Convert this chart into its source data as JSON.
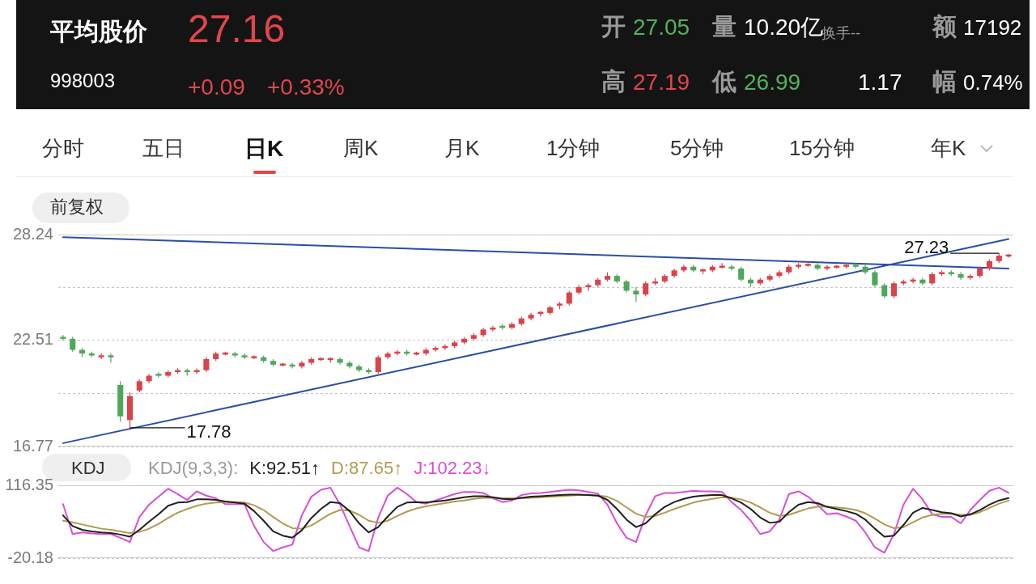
{
  "chart_data": [
    {
      "type": "other",
      "title": "平均股价",
      "annotations": [
        "27.16",
        "998003",
        "+0.09",
        "+0.33%",
        "开",
        "27.05",
        "量",
        "10.20亿",
        "换手--",
        "额",
        "17192",
        "高",
        "27.19",
        "低",
        "26.99",
        "1.17",
        "幅",
        "0.74%",
        "分时",
        "五日",
        "日K",
        "周K",
        "月K",
        "1分钟",
        "5分钟",
        "15分钟",
        "年K",
        "前复权"
      ]
    },
    {
      "type": "candlestick",
      "categories": [
        null,
        null,
        null,
        null,
        null,
        null,
        null,
        null,
        null,
        null,
        null,
        null,
        null,
        null,
        null,
        null,
        null,
        null,
        null,
        null,
        null,
        null,
        null,
        null,
        null,
        null,
        null,
        null,
        null,
        null,
        null,
        null,
        null,
        null,
        null,
        null,
        null,
        null,
        null,
        null,
        null,
        null,
        null,
        null,
        null,
        null,
        null,
        null,
        null,
        null,
        null,
        null,
        null,
        null,
        null,
        null,
        null,
        null,
        null,
        null,
        null,
        null,
        null,
        null,
        null,
        null,
        null,
        null,
        null,
        null,
        null,
        null,
        null,
        null,
        null,
        null,
        null,
        null,
        null,
        null,
        null,
        null,
        null,
        null,
        null,
        null,
        null,
        null,
        null,
        null,
        null,
        null,
        null,
        null,
        null,
        null,
        null,
        null,
        null,
        null
      ],
      "ohlc": [
        [
          22.7,
          22.8,
          22.5,
          22.6
        ],
        [
          22.6,
          22.7,
          21.9,
          22.0
        ],
        [
          22.0,
          22.1,
          21.6,
          21.8
        ],
        [
          21.8,
          21.9,
          21.6,
          21.7
        ],
        [
          21.6,
          21.8,
          21.5,
          21.7
        ],
        [
          21.7,
          21.8,
          21.3,
          21.6
        ],
        [
          20.1,
          20.3,
          18.1,
          18.4
        ],
        [
          18.2,
          19.7,
          17.78,
          19.5
        ],
        [
          19.8,
          20.4,
          19.7,
          20.3
        ],
        [
          20.3,
          20.7,
          20.2,
          20.6
        ],
        [
          20.7,
          20.8,
          20.5,
          20.6
        ],
        [
          20.6,
          20.9,
          20.5,
          20.8
        ],
        [
          20.8,
          21.0,
          20.7,
          20.9
        ],
        [
          20.9,
          21.0,
          20.6,
          20.8
        ],
        [
          20.8,
          21.0,
          20.7,
          20.9
        ],
        [
          20.9,
          21.6,
          20.8,
          21.5
        ],
        [
          21.5,
          21.9,
          21.4,
          21.8
        ],
        [
          21.8,
          21.9,
          21.7,
          21.8
        ],
        [
          21.8,
          21.9,
          21.6,
          21.7
        ],
        [
          21.7,
          21.8,
          21.5,
          21.6
        ],
        [
          21.6,
          21.7,
          21.5,
          21.6
        ],
        [
          21.6,
          21.7,
          21.3,
          21.4
        ],
        [
          21.4,
          21.5,
          21.1,
          21.2
        ],
        [
          21.2,
          21.3,
          21.1,
          21.2
        ],
        [
          21.2,
          21.3,
          21.0,
          21.1
        ],
        [
          21.1,
          21.4,
          21.0,
          21.3
        ],
        [
          21.3,
          21.6,
          21.2,
          21.5
        ],
        [
          21.5,
          21.6,
          21.4,
          21.5
        ],
        [
          21.5,
          21.6,
          21.3,
          21.5
        ],
        [
          21.5,
          21.6,
          21.2,
          21.3
        ],
        [
          21.3,
          21.4,
          21.0,
          21.1
        ],
        [
          21.1,
          21.2,
          20.8,
          20.9
        ],
        [
          20.9,
          21.0,
          20.7,
          20.8
        ],
        [
          20.8,
          21.7,
          20.7,
          21.6
        ],
        [
          21.6,
          21.9,
          21.5,
          21.8
        ],
        [
          21.8,
          22.0,
          21.7,
          21.9
        ],
        [
          21.9,
          22.0,
          21.7,
          21.8
        ],
        [
          21.8,
          21.9,
          21.7,
          21.8
        ],
        [
          21.8,
          22.1,
          21.7,
          22.0
        ],
        [
          22.0,
          22.2,
          21.9,
          22.1
        ],
        [
          22.1,
          22.3,
          22.0,
          22.2
        ],
        [
          22.2,
          22.5,
          22.1,
          22.4
        ],
        [
          22.4,
          22.7,
          22.3,
          22.6
        ],
        [
          22.6,
          22.9,
          22.5,
          22.8
        ],
        [
          22.8,
          23.2,
          22.7,
          23.1
        ],
        [
          23.1,
          23.3,
          23.0,
          23.2
        ],
        [
          23.3,
          23.4,
          23.1,
          23.2
        ],
        [
          23.2,
          23.5,
          23.1,
          23.4
        ],
        [
          23.4,
          23.8,
          23.3,
          23.7
        ],
        [
          23.7,
          24.0,
          23.6,
          23.9
        ],
        [
          24.0,
          24.1,
          23.8,
          24.0
        ],
        [
          24.0,
          24.4,
          23.9,
          24.3
        ],
        [
          24.4,
          24.6,
          24.2,
          24.5
        ],
        [
          24.5,
          25.2,
          24.4,
          25.1
        ],
        [
          25.1,
          25.5,
          25.0,
          25.4
        ],
        [
          25.4,
          25.6,
          25.2,
          25.5
        ],
        [
          25.5,
          25.9,
          25.4,
          25.8
        ],
        [
          25.8,
          26.2,
          25.7,
          26.0
        ],
        [
          26.0,
          26.1,
          25.6,
          25.7
        ],
        [
          25.7,
          25.8,
          25.1,
          25.2
        ],
        [
          25.2,
          25.4,
          24.6,
          25.0
        ],
        [
          25.0,
          25.7,
          24.9,
          25.6
        ],
        [
          25.6,
          25.9,
          25.5,
          25.7
        ],
        [
          25.7,
          26.1,
          25.6,
          26.0
        ],
        [
          26.0,
          26.4,
          25.9,
          26.3
        ],
        [
          26.3,
          26.6,
          26.2,
          26.5
        ],
        [
          26.5,
          26.6,
          26.2,
          26.3
        ],
        [
          26.3,
          26.4,
          26.1,
          26.3
        ],
        [
          26.3,
          26.6,
          26.2,
          26.5
        ],
        [
          26.5,
          26.7,
          26.4,
          26.5
        ],
        [
          26.5,
          26.6,
          26.3,
          26.4
        ],
        [
          26.4,
          26.5,
          25.7,
          25.8
        ],
        [
          25.8,
          25.9,
          25.4,
          25.6
        ],
        [
          25.6,
          25.9,
          25.5,
          25.8
        ],
        [
          25.8,
          26.1,
          25.7,
          26.0
        ],
        [
          26.0,
          26.3,
          25.9,
          26.2
        ],
        [
          26.2,
          26.6,
          26.1,
          26.5
        ],
        [
          26.5,
          26.7,
          26.4,
          26.6
        ],
        [
          26.6,
          26.7,
          26.5,
          26.6
        ],
        [
          26.6,
          26.7,
          26.3,
          26.4
        ],
        [
          26.4,
          26.6,
          26.3,
          26.5
        ],
        [
          26.5,
          26.6,
          26.4,
          26.5
        ],
        [
          26.5,
          26.7,
          26.4,
          26.6
        ],
        [
          26.6,
          26.7,
          26.4,
          26.5
        ],
        [
          26.5,
          26.6,
          26.1,
          26.2
        ],
        [
          26.2,
          26.3,
          25.4,
          25.5
        ],
        [
          25.5,
          25.6,
          24.8,
          24.9
        ],
        [
          24.9,
          25.7,
          24.8,
          25.6
        ],
        [
          25.6,
          25.8,
          25.5,
          25.7
        ],
        [
          25.7,
          25.9,
          25.6,
          25.8
        ],
        [
          25.8,
          25.9,
          25.5,
          25.6
        ],
        [
          25.6,
          26.2,
          25.5,
          26.1
        ],
        [
          26.1,
          26.3,
          26.0,
          26.2
        ],
        [
          26.2,
          26.3,
          26.0,
          26.1
        ],
        [
          26.1,
          26.2,
          25.8,
          25.9
        ],
        [
          25.9,
          26.1,
          25.8,
          26.0
        ],
        [
          26.0,
          26.5,
          25.9,
          26.4
        ],
        [
          26.4,
          26.9,
          26.3,
          26.8
        ],
        [
          26.8,
          27.23,
          26.7,
          27.1
        ],
        [
          27.05,
          27.19,
          26.99,
          27.16
        ]
      ],
      "colors": [
        "#4fa85a",
        "#4fa85a",
        "#4fa85a",
        "#4fa85a",
        "#d9434b",
        "#4fa85a",
        "#4fa85a",
        "#d9434b",
        "#d9434b",
        "#d9434b",
        "#4fa85a",
        "#d9434b",
        "#d9434b",
        "#4fa85a",
        "#d9434b",
        "#d9434b",
        "#d9434b",
        "#d9434b",
        "#4fa85a",
        "#4fa85a",
        "#d9434b",
        "#4fa85a",
        "#4fa85a",
        "#d9434b",
        "#4fa85a",
        "#d9434b",
        "#d9434b",
        "#d9434b",
        "#d9434b",
        "#4fa85a",
        "#4fa85a",
        "#4fa85a",
        "#4fa85a",
        "#d9434b",
        "#d9434b",
        "#d9434b",
        "#4fa85a",
        "#d9434b",
        "#d9434b",
        "#d9434b",
        "#d9434b",
        "#d9434b",
        "#d9434b",
        "#d9434b",
        "#d9434b",
        "#d9434b",
        "#4fa85a",
        "#d9434b",
        "#d9434b",
        "#d9434b",
        "#d9434b",
        "#d9434b",
        "#d9434b",
        "#d9434b",
        "#d9434b",
        "#d9434b",
        "#d9434b",
        "#d9434b",
        "#4fa85a",
        "#4fa85a",
        "#4fa85a",
        "#d9434b",
        "#d9434b",
        "#d9434b",
        "#d9434b",
        "#d9434b",
        "#4fa85a",
        "#d9434b",
        "#d9434b",
        "#d9434b",
        "#4fa85a",
        "#4fa85a",
        "#4fa85a",
        "#d9434b",
        "#d9434b",
        "#d9434b",
        "#d9434b",
        "#d9434b",
        "#d9434b",
        "#4fa85a",
        "#d9434b",
        "#d9434b",
        "#d9434b",
        "#4fa85a",
        "#4fa85a",
        "#4fa85a",
        "#4fa85a",
        "#d9434b",
        "#d9434b",
        "#d9434b",
        "#4fa85a",
        "#d9434b",
        "#d9434b",
        "#4fa85a",
        "#4fa85a",
        "#d9434b",
        "#d9434b",
        "#d9434b",
        "#d9434b",
        "#d9434b"
      ],
      "series": [
        {
          "type": "line",
          "color": "#2b4ea2",
          "values": [
            28.1,
            null,
            null,
            null,
            null,
            null,
            null,
            null,
            null,
            null,
            null,
            null,
            null,
            null,
            null,
            null,
            null,
            null,
            null,
            null,
            null,
            null,
            null,
            null,
            null,
            null,
            null,
            null,
            null,
            null,
            null,
            null,
            null,
            null,
            null,
            null,
            null,
            null,
            null,
            null,
            null,
            null,
            null,
            null,
            null,
            null,
            null,
            null,
            null,
            null,
            null,
            null,
            null,
            null,
            null,
            null,
            null,
            null,
            null,
            null,
            null,
            null,
            null,
            null,
            null,
            null,
            null,
            null,
            null,
            null,
            null,
            null,
            null,
            null,
            null,
            null,
            null,
            null,
            null,
            null,
            null,
            null,
            null,
            null,
            null,
            null,
            null,
            null,
            null,
            null,
            null,
            null,
            null,
            null,
            null,
            null,
            null,
            null,
            null,
            26.4
          ]
        },
        {
          "type": "line",
          "color": "#2b4ea2",
          "values": [
            16.95,
            null,
            null,
            null,
            null,
            null,
            null,
            null,
            null,
            null,
            null,
            null,
            null,
            null,
            null,
            null,
            null,
            null,
            null,
            null,
            null,
            null,
            null,
            null,
            null,
            null,
            null,
            null,
            null,
            null,
            null,
            null,
            null,
            null,
            null,
            null,
            null,
            null,
            null,
            null,
            null,
            null,
            null,
            null,
            null,
            null,
            null,
            null,
            null,
            null,
            null,
            null,
            null,
            null,
            null,
            null,
            null,
            null,
            null,
            null,
            null,
            null,
            null,
            null,
            null,
            null,
            null,
            null,
            null,
            null,
            null,
            null,
            null,
            null,
            null,
            null,
            null,
            null,
            null,
            null,
            null,
            null,
            null,
            null,
            null,
            null,
            null,
            null,
            null,
            null,
            null,
            null,
            null,
            null,
            null,
            null,
            null,
            null,
            null,
            28.0
          ]
        }
      ],
      "ylim": [
        16.77,
        28.24
      ],
      "yticks": [
        28.24,
        {
          "value": 25.375,
          "label": null
        },
        22.51,
        {
          "value": 19.64,
          "label": null
        },
        16.77
      ],
      "grid": "y",
      "tick_labels": "y",
      "annotations": [
        "17.78",
        "27.23"
      ]
    },
    {
      "type": "line",
      "title": "KDJ",
      "subtitle": "KDJ(9,3,3):",
      "categories": [
        null,
        null,
        null,
        null,
        null,
        null,
        null,
        null,
        null,
        null,
        null,
        null,
        null,
        null,
        null,
        null,
        null,
        null,
        null,
        null,
        null,
        null,
        null,
        null,
        null,
        null,
        null,
        null,
        null,
        null,
        null,
        null,
        null,
        null,
        null,
        null,
        null,
        null,
        null,
        null,
        null,
        null,
        null,
        null,
        null,
        null,
        null,
        null,
        null,
        null,
        null,
        null,
        null,
        null,
        null,
        null,
        null,
        null,
        null,
        null,
        null,
        null,
        null,
        null,
        null,
        null,
        null,
        null,
        null,
        null,
        null,
        null,
        null,
        null,
        null,
        null,
        null,
        null,
        null,
        null,
        null,
        null,
        null,
        null,
        null,
        null,
        null,
        null,
        null,
        null,
        null,
        null,
        null,
        null,
        null,
        null,
        null,
        null,
        null,
        null
      ],
      "series": [
        {
          "name": "K:92.51↑",
          "color": "#1f1f1f",
          "values": [
            60,
            40,
            33,
            30,
            28,
            27,
            24,
            20,
            33,
            48,
            62,
            78,
            84,
            85,
            90,
            90,
            89,
            86,
            84,
            82,
            68,
            50,
            30,
            22,
            18,
            32,
            55,
            72,
            85,
            83,
            68,
            45,
            28,
            38,
            58,
            76,
            84,
            85,
            84,
            86,
            88,
            91,
            94,
            96,
            96,
            94,
            91,
            90,
            93,
            95,
            96,
            97,
            98,
            99,
            99,
            98,
            97,
            89,
            72,
            52,
            38,
            45,
            62,
            76,
            85,
            91,
            95,
            97,
            98,
            98,
            92,
            84,
            72,
            56,
            46,
            48,
            66,
            80,
            85,
            83,
            76,
            72,
            68,
            63,
            52,
            35,
            20,
            22,
            42,
            65,
            74,
            70,
            66,
            64,
            58,
            62,
            70,
            80,
            88,
            92.51
          ]
        },
        {
          "name": "D:87.65↑",
          "color": "#b39a4e",
          "values": [
            50,
            47,
            43,
            39,
            35,
            33,
            30,
            27,
            29,
            35,
            44,
            55,
            65,
            72,
            78,
            82,
            84,
            85,
            85,
            84,
            79,
            70,
            57,
            45,
            36,
            35,
            41,
            52,
            63,
            70,
            69,
            61,
            50,
            46,
            50,
            59,
            67,
            73,
            77,
            80,
            83,
            86,
            88,
            91,
            93,
            93,
            92,
            92,
            92,
            93,
            94,
            95,
            96,
            97,
            98,
            98,
            97,
            95,
            87,
            75,
            63,
            57,
            59,
            65,
            72,
            78,
            84,
            88,
            91,
            94,
            93,
            90,
            84,
            75,
            65,
            59,
            61,
            67,
            73,
            76,
            76,
            75,
            73,
            70,
            64,
            54,
            43,
            36,
            38,
            47,
            56,
            61,
            63,
            63,
            61,
            61,
            66,
            74,
            82,
            87.65
          ]
        },
        {
          "name": "J:102.23↓",
          "color": "#d64fd6",
          "values": [
            81,
            25,
            28,
            26,
            25,
            25,
            18,
            10,
            57,
            80,
            95,
            110,
            100,
            89,
            105,
            97,
            92,
            81,
            81,
            81,
            40,
            10,
            -7,
            0,
            5,
            60,
            95,
            108,
            112,
            80,
            40,
            0,
            -7,
            56,
            97,
            112,
            100,
            85,
            82,
            88,
            94,
            100,
            104,
            104,
            102,
            92,
            85,
            88,
            98,
            101,
            102,
            104,
            106,
            108,
            107,
            104,
            101,
            80,
            45,
            18,
            10,
            60,
            96,
            102,
            102,
            104,
            106,
            105,
            105,
            104,
            85,
            70,
            50,
            25,
            30,
            52,
            100,
            105,
            95,
            80,
            62,
            64,
            58,
            50,
            28,
            0,
            -10,
            25,
            80,
            110,
            90,
            62,
            57,
            57,
            45,
            70,
            89,
            106,
            112,
            102.23
          ]
        }
      ],
      "ylim": [
        -20.18,
        116.35
      ],
      "yticks": [
        116.35,
        -20.18
      ],
      "grid": "y",
      "tick_labels": "y",
      "legend": "top left"
    }
  ]
}
